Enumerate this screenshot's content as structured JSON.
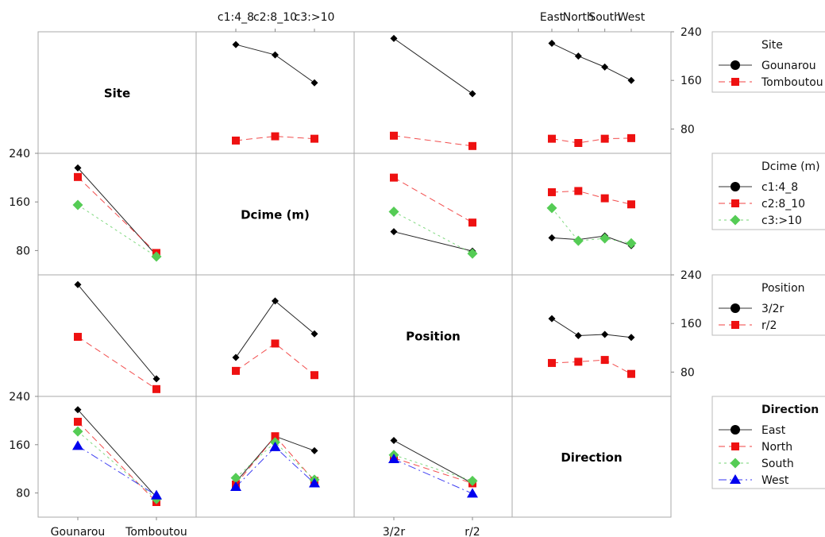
{
  "chart_data": {
    "type": "line",
    "kind": "interaction-plot-matrix",
    "factors": [
      {
        "name": "Site",
        "label": "Site",
        "levels": [
          "Gounarou",
          "Tomboutou"
        ]
      },
      {
        "name": "Dcime (m)",
        "label": "Dcime (m)",
        "levels": [
          "c1:4_8",
          "c2:8_10",
          "c3:>10"
        ]
      },
      {
        "name": "Position",
        "label": "Position",
        "levels": [
          "3/2r",
          "r/2"
        ]
      },
      {
        "name": "Direction",
        "label": "Direction",
        "levels": [
          "East",
          "North",
          "South",
          "West"
        ]
      }
    ],
    "y_ticks": [
      80,
      160,
      240
    ],
    "ylim": [
      40,
      240
    ],
    "styles": [
      {
        "marker": "diamond",
        "color": "#000000",
        "dash": ""
      },
      {
        "marker": "square",
        "color": "#ee1111",
        "dash": "8,5"
      },
      {
        "marker": "diamond",
        "color": "#55cc55",
        "dash": "3,4"
      },
      {
        "marker": "triangle",
        "color": "#0000ee",
        "dash": "10,4,2,4"
      }
    ],
    "cells": [
      {
        "row": 0,
        "col": 1,
        "series": [
          {
            "trace": "Gounarou",
            "values": [
              219,
              202,
              156
            ]
          },
          {
            "trace": "Tomboutou",
            "values": [
              61,
              68,
              64
            ]
          }
        ]
      },
      {
        "row": 0,
        "col": 2,
        "series": [
          {
            "trace": "Gounarou",
            "values": [
              229,
              138
            ]
          },
          {
            "trace": "Tomboutou",
            "values": [
              69,
              52
            ]
          }
        ]
      },
      {
        "row": 0,
        "col": 3,
        "series": [
          {
            "trace": "Gounarou",
            "values": [
              221,
              200,
              182,
              160
            ]
          },
          {
            "trace": "Tomboutou",
            "values": [
              64,
              57,
              64,
              65
            ]
          }
        ]
      },
      {
        "row": 1,
        "col": 0,
        "series": [
          {
            "trace": "c1:4_8",
            "values": [
              216,
              72
            ]
          },
          {
            "trace": "c2:8_10",
            "values": [
              201,
              76
            ]
          },
          {
            "trace": "c3:>10",
            "values": [
              155,
              70
            ]
          }
        ]
      },
      {
        "row": 1,
        "col": 2,
        "series": [
          {
            "trace": "c1:4_8",
            "values": [
              111,
              79
            ]
          },
          {
            "trace": "c2:8_10",
            "values": [
              200,
              126
            ]
          },
          {
            "trace": "c3:>10",
            "values": [
              144,
              75
            ]
          }
        ]
      },
      {
        "row": 1,
        "col": 3,
        "series": [
          {
            "trace": "c1:4_8",
            "values": [
              101,
              98,
              104,
              88
            ]
          },
          {
            "trace": "c2:8_10",
            "values": [
              176,
              178,
              166,
              156
            ]
          },
          {
            "trace": "c3:>10",
            "values": [
              150,
              96,
              100,
              92
            ]
          }
        ]
      },
      {
        "row": 2,
        "col": 0,
        "series": [
          {
            "trace": "3/2r",
            "values": [
              224,
              69
            ]
          },
          {
            "trace": "r/2",
            "values": [
              138,
              52
            ]
          }
        ]
      },
      {
        "row": 2,
        "col": 1,
        "series": [
          {
            "trace": "3/2r",
            "values": [
              104,
              197,
              143
            ]
          },
          {
            "trace": "r/2",
            "values": [
              82,
              127,
              75
            ]
          }
        ]
      },
      {
        "row": 2,
        "col": 3,
        "series": [
          {
            "trace": "3/2r",
            "values": [
              168,
              140,
              142,
              137
            ]
          },
          {
            "trace": "r/2",
            "values": [
              95,
              97,
              100,
              77
            ]
          }
        ]
      },
      {
        "row": 3,
        "col": 0,
        "series": [
          {
            "trace": "East",
            "values": [
              218,
              73
            ]
          },
          {
            "trace": "North",
            "values": [
              198,
              65
            ]
          },
          {
            "trace": "South",
            "values": [
              182,
              70
            ]
          },
          {
            "trace": "West",
            "values": [
              158,
              76
            ]
          }
        ]
      },
      {
        "row": 3,
        "col": 1,
        "series": [
          {
            "trace": "East",
            "values": [
              98,
              174,
              150
            ]
          },
          {
            "trace": "North",
            "values": [
              94,
              174,
              100
            ]
          },
          {
            "trace": "South",
            "values": [
              105,
              164,
              102
            ]
          },
          {
            "trace": "West",
            "values": [
              90,
              156,
              96
            ]
          }
        ]
      },
      {
        "row": 3,
        "col": 2,
        "series": [
          {
            "trace": "East",
            "values": [
              167,
              96
            ]
          },
          {
            "trace": "North",
            "values": [
              138,
              96
            ]
          },
          {
            "trace": "South",
            "values": [
              143,
              100
            ]
          },
          {
            "trace": "West",
            "values": [
              136,
              79
            ]
          }
        ]
      }
    ],
    "legends": [
      {
        "title": "Site",
        "bold": false,
        "entries": [
          "Gounarou",
          "Tomboutou"
        ]
      },
      {
        "title": "Dcime (m)",
        "bold": false,
        "entries": [
          "c1:4_8",
          "c2:8_10",
          "c3:>10"
        ]
      },
      {
        "title": "Position",
        "bold": false,
        "entries": [
          "3/2r",
          "r/2"
        ]
      },
      {
        "title": "Direction",
        "bold": true,
        "entries": [
          "East",
          "North",
          "South",
          "West"
        ]
      }
    ]
  }
}
